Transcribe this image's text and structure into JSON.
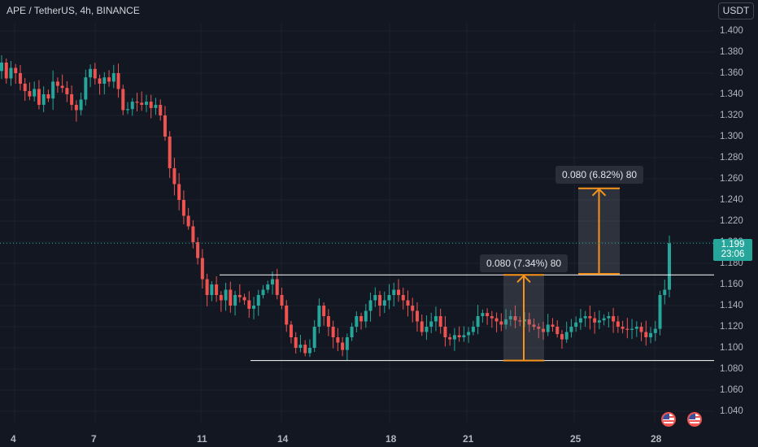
{
  "header": {
    "title": "APE / TetherUS, 4h, BINANCE",
    "currency": "USDT"
  },
  "price_tag": {
    "price": "1.199",
    "countdown": "23:06"
  },
  "measurements": [
    {
      "label": "0.080 (7.34%) 80"
    },
    {
      "label": "0.080 (6.82%) 80"
    }
  ],
  "colors": {
    "up": "#26a69a",
    "down": "#ef5350",
    "measure": "#f7931a",
    "background": "#131722"
  },
  "events": [
    "flag-icon",
    "flag-icon"
  ],
  "chart_data": {
    "type": "candlestick",
    "title": "APE / TetherUS, 4h, BINANCE",
    "y_ticks": [
      "1.400",
      "1.380",
      "1.360",
      "1.340",
      "1.320",
      "1.300",
      "1.280",
      "1.260",
      "1.240",
      "1.220",
      "1.200",
      "1.180",
      "1.160",
      "1.140",
      "1.120",
      "1.100",
      "1.080",
      "1.060",
      "1.040"
    ],
    "x_ticks": [
      "4",
      "7",
      "11",
      "14",
      "18",
      "21",
      "25",
      "28"
    ],
    "ylim": [
      1.036,
      1.412
    ],
    "grid": true,
    "range_lines": [
      1.169,
      1.088
    ],
    "measure_moves": [
      {
        "from": 1.088,
        "to": 1.169,
        "change": 0.08,
        "percent": 7.34
      },
      {
        "from": 1.17,
        "to": 1.251,
        "change": 0.08,
        "percent": 6.82
      }
    ],
    "closes": [
      1.37,
      1.355,
      1.365,
      1.36,
      1.35,
      1.343,
      1.338,
      1.345,
      1.33,
      1.34,
      1.336,
      1.352,
      1.348,
      1.346,
      1.34,
      1.33,
      1.325,
      1.335,
      1.356,
      1.364,
      1.355,
      1.35,
      1.356,
      1.352,
      1.36,
      1.345,
      1.325,
      1.326,
      1.333,
      1.332,
      1.33,
      1.333,
      1.327,
      1.33,
      1.32,
      1.3,
      1.27,
      1.255,
      1.24,
      1.225,
      1.215,
      1.2,
      1.185,
      1.165,
      1.15,
      1.16,
      1.15,
      1.145,
      1.155,
      1.14,
      1.15,
      1.148,
      1.145,
      1.137,
      1.14,
      1.15,
      1.155,
      1.16,
      1.165,
      1.15,
      1.14,
      1.122,
      1.11,
      1.1,
      1.103,
      1.095,
      1.1,
      1.12,
      1.14,
      1.13,
      1.12,
      1.11,
      1.105,
      1.098,
      1.11,
      1.12,
      1.13,
      1.125,
      1.135,
      1.145,
      1.15,
      1.14,
      1.145,
      1.15,
      1.155,
      1.15,
      1.145,
      1.14,
      1.135,
      1.125,
      1.115,
      1.12,
      1.125,
      1.13,
      1.12,
      1.11,
      1.108,
      1.112,
      1.11,
      1.112,
      1.115,
      1.12,
      1.13,
      1.133,
      1.13,
      1.128,
      1.125,
      1.122,
      1.127,
      1.13,
      1.126,
      1.125,
      1.127,
      1.122,
      1.12,
      1.118,
      1.115,
      1.122,
      1.12,
      1.113,
      1.108,
      1.115,
      1.12,
      1.124,
      1.128,
      1.13,
      1.128,
      1.124,
      1.126,
      1.128,
      1.13,
      1.125,
      1.12,
      1.118,
      1.117,
      1.118,
      1.12,
      1.115,
      1.11,
      1.114,
      1.118,
      1.15,
      1.155,
      1.199
    ],
    "last_price": 1.199
  }
}
